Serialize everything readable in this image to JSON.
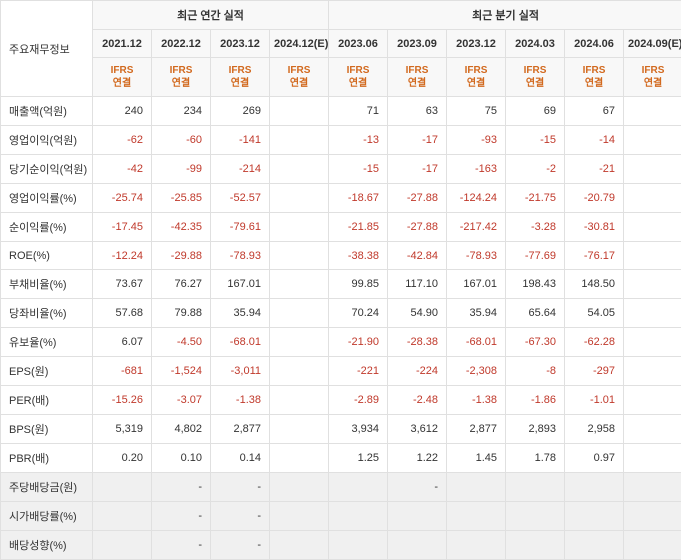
{
  "headers": {
    "main_label": "주요재무정보",
    "annual_label": "최근 연간 실적",
    "quarterly_label": "최근 분기 실적",
    "ifrs_label": "IFRS\n연결",
    "annual_periods": [
      "2021.12",
      "2022.12",
      "2023.12",
      "2024.12(E)"
    ],
    "quarterly_periods": [
      "2023.06",
      "2023.09",
      "2023.12",
      "2024.03",
      "2024.06",
      "2024.09(E)"
    ]
  },
  "rows": [
    {
      "label": "매출액(억원)",
      "annual": [
        "240",
        "234",
        "269",
        ""
      ],
      "quarterly": [
        "71",
        "63",
        "75",
        "69",
        "67",
        ""
      ]
    },
    {
      "label": "영업이익(억원)",
      "annual": [
        "-62",
        "-60",
        "-141",
        ""
      ],
      "quarterly": [
        "-13",
        "-17",
        "-93",
        "-15",
        "-14",
        ""
      ]
    },
    {
      "label": "당기순이익(억원)",
      "annual": [
        "-42",
        "-99",
        "-214",
        ""
      ],
      "quarterly": [
        "-15",
        "-17",
        "-163",
        "-2",
        "-21",
        ""
      ]
    },
    {
      "label": "영업이익률(%)",
      "annual": [
        "-25.74",
        "-25.85",
        "-52.57",
        ""
      ],
      "quarterly": [
        "-18.67",
        "-27.88",
        "-124.24",
        "-21.75",
        "-20.79",
        ""
      ]
    },
    {
      "label": "순이익률(%)",
      "annual": [
        "-17.45",
        "-42.35",
        "-79.61",
        ""
      ],
      "quarterly": [
        "-21.85",
        "-27.88",
        "-217.42",
        "-3.28",
        "-30.81",
        ""
      ]
    },
    {
      "label": "ROE(%)",
      "annual": [
        "-12.24",
        "-29.88",
        "-78.93",
        ""
      ],
      "quarterly": [
        "-38.38",
        "-42.84",
        "-78.93",
        "-77.69",
        "-76.17",
        ""
      ]
    },
    {
      "label": "부채비율(%)",
      "annual": [
        "73.67",
        "76.27",
        "167.01",
        ""
      ],
      "quarterly": [
        "99.85",
        "117.10",
        "167.01",
        "198.43",
        "148.50",
        ""
      ]
    },
    {
      "label": "당좌비율(%)",
      "annual": [
        "57.68",
        "79.88",
        "35.94",
        ""
      ],
      "quarterly": [
        "70.24",
        "54.90",
        "35.94",
        "65.64",
        "54.05",
        ""
      ]
    },
    {
      "label": "유보율(%)",
      "annual": [
        "6.07",
        "-4.50",
        "-68.01",
        ""
      ],
      "quarterly": [
        "-21.90",
        "-28.38",
        "-68.01",
        "-67.30",
        "-62.28",
        ""
      ]
    },
    {
      "label": "EPS(원)",
      "annual": [
        "-681",
        "-1,524",
        "-3,011",
        ""
      ],
      "quarterly": [
        "-221",
        "-224",
        "-2,308",
        "-8",
        "-297",
        ""
      ]
    },
    {
      "label": "PER(배)",
      "annual": [
        "-15.26",
        "-3.07",
        "-1.38",
        ""
      ],
      "quarterly": [
        "-2.89",
        "-2.48",
        "-1.38",
        "-1.86",
        "-1.01",
        ""
      ]
    },
    {
      "label": "BPS(원)",
      "annual": [
        "5,319",
        "4,802",
        "2,877",
        ""
      ],
      "quarterly": [
        "3,934",
        "3,612",
        "2,877",
        "2,893",
        "2,958",
        ""
      ]
    },
    {
      "label": "PBR(배)",
      "annual": [
        "0.20",
        "0.10",
        "0.14",
        ""
      ],
      "quarterly": [
        "1.25",
        "1.22",
        "1.45",
        "1.78",
        "0.97",
        ""
      ]
    },
    {
      "label": "주당배당금(원)",
      "annual": [
        "",
        "-",
        "-",
        ""
      ],
      "quarterly": [
        "",
        "-",
        "",
        "",
        "",
        ""
      ],
      "grey": true
    },
    {
      "label": "시가배당률(%)",
      "annual": [
        "",
        "-",
        "-",
        ""
      ],
      "quarterly": [
        "",
        "",
        "",
        "",
        "",
        ""
      ],
      "grey": true
    },
    {
      "label": "배당성향(%)",
      "annual": [
        "",
        "-",
        "-",
        ""
      ],
      "quarterly": [
        "",
        "",
        "",
        "",
        "",
        ""
      ],
      "grey": true
    }
  ],
  "style": {
    "neg_color": "#c0392b",
    "pos_color": "#333333",
    "ifrs_color": "#d2691e",
    "border_color": "#e0e0e0",
    "header_bg": "#f8f8f8",
    "grey_bg": "#f0f0f0"
  }
}
